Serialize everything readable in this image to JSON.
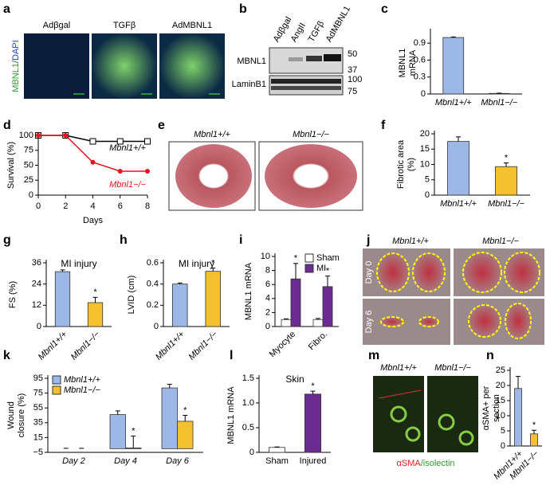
{
  "figure_panels": {
    "a": {
      "letter": "a",
      "labels": [
        "Adβgal",
        "TGFβ",
        "AdMBNL1"
      ],
      "stain": [
        "MBNL1",
        "/DAPI"
      ]
    },
    "b": {
      "letter": "b",
      "lanes": [
        "Adβgal",
        "AngII",
        "TGFβ",
        "AdMBNL1"
      ],
      "rows": [
        "MBNL1",
        "LaminB1"
      ],
      "markers": [
        50,
        37,
        100,
        75
      ]
    },
    "e": {
      "letter": "e",
      "labels": [
        "Mbnl1+/+",
        "Mbnl1−/−"
      ]
    },
    "j": {
      "letter": "j",
      "labels": [
        "Mbnl1+/+",
        "Mbnl1−/−"
      ],
      "rows": [
        "Day 0",
        "Day 6"
      ]
    },
    "m": {
      "letter": "m",
      "labels": [
        "Mbnl1+/+",
        "Mbnl1−/−"
      ],
      "stain": [
        "αSMA",
        "/isolectin"
      ]
    }
  },
  "chart_data": [
    {
      "panel": "c",
      "type": "bar",
      "ylabel": [
        "MBNL1",
        "mRNA"
      ],
      "categories": [
        "Mbnl1+/+",
        "Mbnl1−/−"
      ],
      "values": [
        1.0,
        0.01
      ],
      "errors": [
        0.01,
        0.005
      ],
      "colors": [
        "#9db8e6",
        "#f5c02e"
      ],
      "ylim": [
        0,
        1.1
      ],
      "yticks": [
        0,
        0.3,
        0.6,
        0.9
      ]
    },
    {
      "panel": "d",
      "type": "line",
      "ylabel": "Survival (%)",
      "xlabel": "Days",
      "x": [
        0,
        2,
        4,
        6,
        8
      ],
      "series": [
        {
          "name": "Mbnl1+/+",
          "color": "#000000",
          "marker": "square",
          "values": [
            100,
            100,
            90,
            90,
            90
          ]
        },
        {
          "name": "Mbnl1−/−",
          "color": "#e3141b",
          "marker": "circle",
          "values": [
            100,
            100,
            55,
            40,
            40
          ]
        }
      ],
      "xlim": [
        0,
        8
      ],
      "xticks": [
        0,
        2,
        4,
        6,
        8
      ],
      "ylim": [
        0,
        100
      ],
      "yticks": [
        0,
        25,
        50,
        75,
        100
      ]
    },
    {
      "panel": "f",
      "type": "bar",
      "ylabel": [
        "Fibrotic area",
        "(%)"
      ],
      "categories": [
        "Mbnl1+/+",
        "Mbnl1−/−"
      ],
      "values": [
        17.5,
        9.3
      ],
      "errors": [
        1.5,
        1.2
      ],
      "significance": [
        null,
        "*"
      ],
      "colors": [
        "#9db8e6",
        "#f5c02e"
      ],
      "ylim": [
        0,
        20
      ],
      "yticks": [
        0,
        5,
        10,
        15,
        20
      ]
    },
    {
      "panel": "g",
      "type": "bar",
      "annotation": "MI injury",
      "ylabel": "FS (%)",
      "categories": [
        "Mbnl1+/+",
        "Mbnl1−/−"
      ],
      "values": [
        31,
        13.5
      ],
      "errors": [
        1,
        3
      ],
      "significance": [
        null,
        "*"
      ],
      "colors": [
        "#9db8e6",
        "#f5c02e"
      ],
      "ylim": [
        0,
        36
      ],
      "yticks": [
        0,
        12,
        24,
        36
      ]
    },
    {
      "panel": "h",
      "type": "bar",
      "annotation": "MI injury",
      "ylabel": "LVID (cm)",
      "categories": [
        "Mbnl1+/+",
        "Mbnl1−/−"
      ],
      "values": [
        0.4,
        0.52
      ],
      "errors": [
        0.01,
        0.03
      ],
      "significance": [
        null,
        "*"
      ],
      "colors": [
        "#9db8e6",
        "#f5c02e"
      ],
      "ylim": [
        0,
        0.6
      ],
      "yticks": [
        0,
        0.2,
        0.4,
        0.6
      ]
    },
    {
      "panel": "i",
      "type": "bar",
      "ylabel": "MBNL1 mRNA",
      "categories": [
        "Myocyte",
        "Fibro."
      ],
      "legend": "upper right",
      "series": [
        {
          "name": "Sham",
          "color": "#ffffff",
          "values": [
            1.0,
            1.0
          ],
          "errors": [
            0.1,
            0.15
          ],
          "significance": [
            null,
            null
          ]
        },
        {
          "name": "MI",
          "color": "#6a2c91",
          "values": [
            6.8,
            5.7
          ],
          "errors": [
            2.2,
            1.5
          ],
          "significance": [
            "*",
            "*"
          ]
        }
      ],
      "ylim": [
        0,
        10
      ],
      "yticks": [
        0,
        2,
        4,
        6,
        8,
        10
      ]
    },
    {
      "panel": "k",
      "type": "bar",
      "ylabel": [
        "Wound",
        "closure (%)"
      ],
      "categories": [
        "Day 2",
        "Day 4",
        "Day 6"
      ],
      "legend": "upper left",
      "series": [
        {
          "name": "Mbnl1+/+",
          "color": "#9db8e6",
          "values": [
            0,
            46,
            82
          ],
          "errors": [
            0.5,
            5,
            5
          ],
          "significance": [
            null,
            null,
            null
          ]
        },
        {
          "name": "Mbnl1−/−",
          "color": "#f5c02e",
          "values": [
            0,
            1,
            37
          ],
          "errors": [
            0.5,
            16,
            8
          ],
          "significance": [
            null,
            "*",
            "*"
          ]
        }
      ],
      "ylim": [
        -5,
        95
      ],
      "yticks": [
        {
          "value": -5,
          "label": "−5"
        },
        15,
        35,
        55,
        75,
        95
      ]
    },
    {
      "panel": "l",
      "type": "bar",
      "annotation": "Skin",
      "ylabel": "MBNL1 mRNA",
      "categories": [
        "Sham",
        "Injured"
      ],
      "values": [
        0.1,
        1.18
      ],
      "errors": [
        0.01,
        0.06
      ],
      "significance": [
        null,
        "*"
      ],
      "colors": [
        "#ffffff",
        "#6a2c91"
      ],
      "ylim": [
        0,
        1.5
      ],
      "yticks": [
        0,
        0.5,
        {
          "value": 1,
          "label": "1.0"
        },
        1.5
      ]
    },
    {
      "panel": "n",
      "type": "bar",
      "ylabel": [
        "αSMA+ per",
        "section"
      ],
      "categories": [
        "Mbnl1+/+",
        "Mbnl1−/−"
      ],
      "values": [
        19,
        4
      ],
      "errors": [
        4,
        1.2
      ],
      "significance": [
        null,
        "*"
      ],
      "colors": [
        "#9db8e6",
        "#f5c02e"
      ],
      "ylim": [
        0,
        25
      ],
      "yticks": [
        0,
        5,
        10,
        15,
        20,
        25
      ]
    }
  ]
}
